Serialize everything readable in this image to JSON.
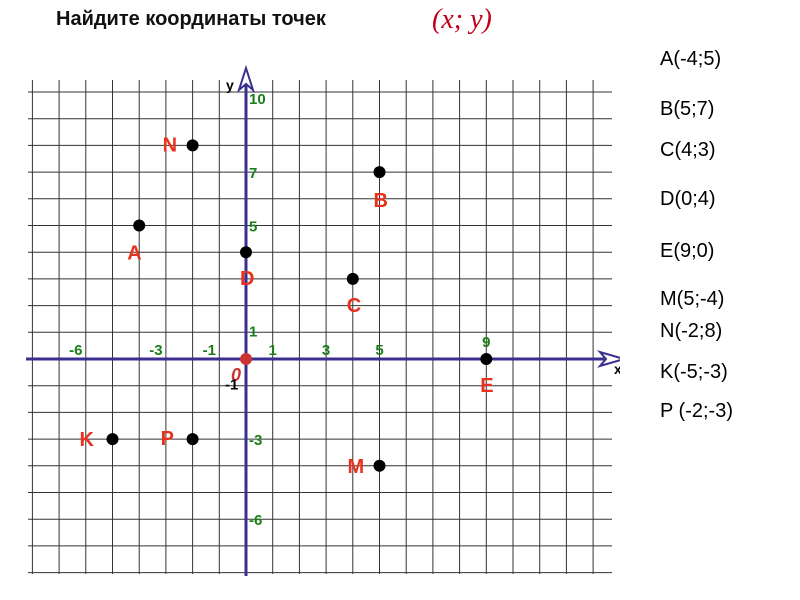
{
  "title": "Найдите координаты точек",
  "title_formula": "(x; y)",
  "axes": {
    "x_label": "x",
    "y_label": "y",
    "origin_label": "0",
    "x_range": [
      -8,
      14
    ],
    "y_range": [
      -8,
      10.5
    ],
    "x_ticks": [
      "-6",
      "-3",
      "-1",
      "1",
      "3",
      "5",
      "9"
    ],
    "y_ticks": [
      "10",
      "7",
      "5",
      "1",
      "-1",
      "-3",
      "-6"
    ]
  },
  "points": [
    {
      "name": "A",
      "x": -4,
      "y": 5
    },
    {
      "name": "B",
      "x": 5,
      "y": 7
    },
    {
      "name": "C",
      "x": 4,
      "y": 3
    },
    {
      "name": "D",
      "x": 0,
      "y": 4
    },
    {
      "name": "E",
      "x": 9,
      "y": 0
    },
    {
      "name": "M",
      "x": 5,
      "y": -4
    },
    {
      "name": "N",
      "x": -2,
      "y": 8
    },
    {
      "name": "K",
      "x": -5,
      "y": -3
    },
    {
      "name": "P",
      "x": -2,
      "y": -3
    }
  ],
  "answers": [
    "A(-4;5)",
    "B(5;7)",
    "C(4;3)",
    "D(0;4)",
    "E(9;0)",
    "M(5;-4)",
    "N(-2;8)",
    "K(-5;-3)",
    "P (-2;-3)"
  ],
  "colors": {
    "grid": "#333333",
    "axis": "#3a2f8e",
    "tick_label": "#1a7f1a",
    "point_label": "#e8321e",
    "point": "#000000",
    "origin": "#cc3333",
    "title_formula": "#c0001a"
  }
}
